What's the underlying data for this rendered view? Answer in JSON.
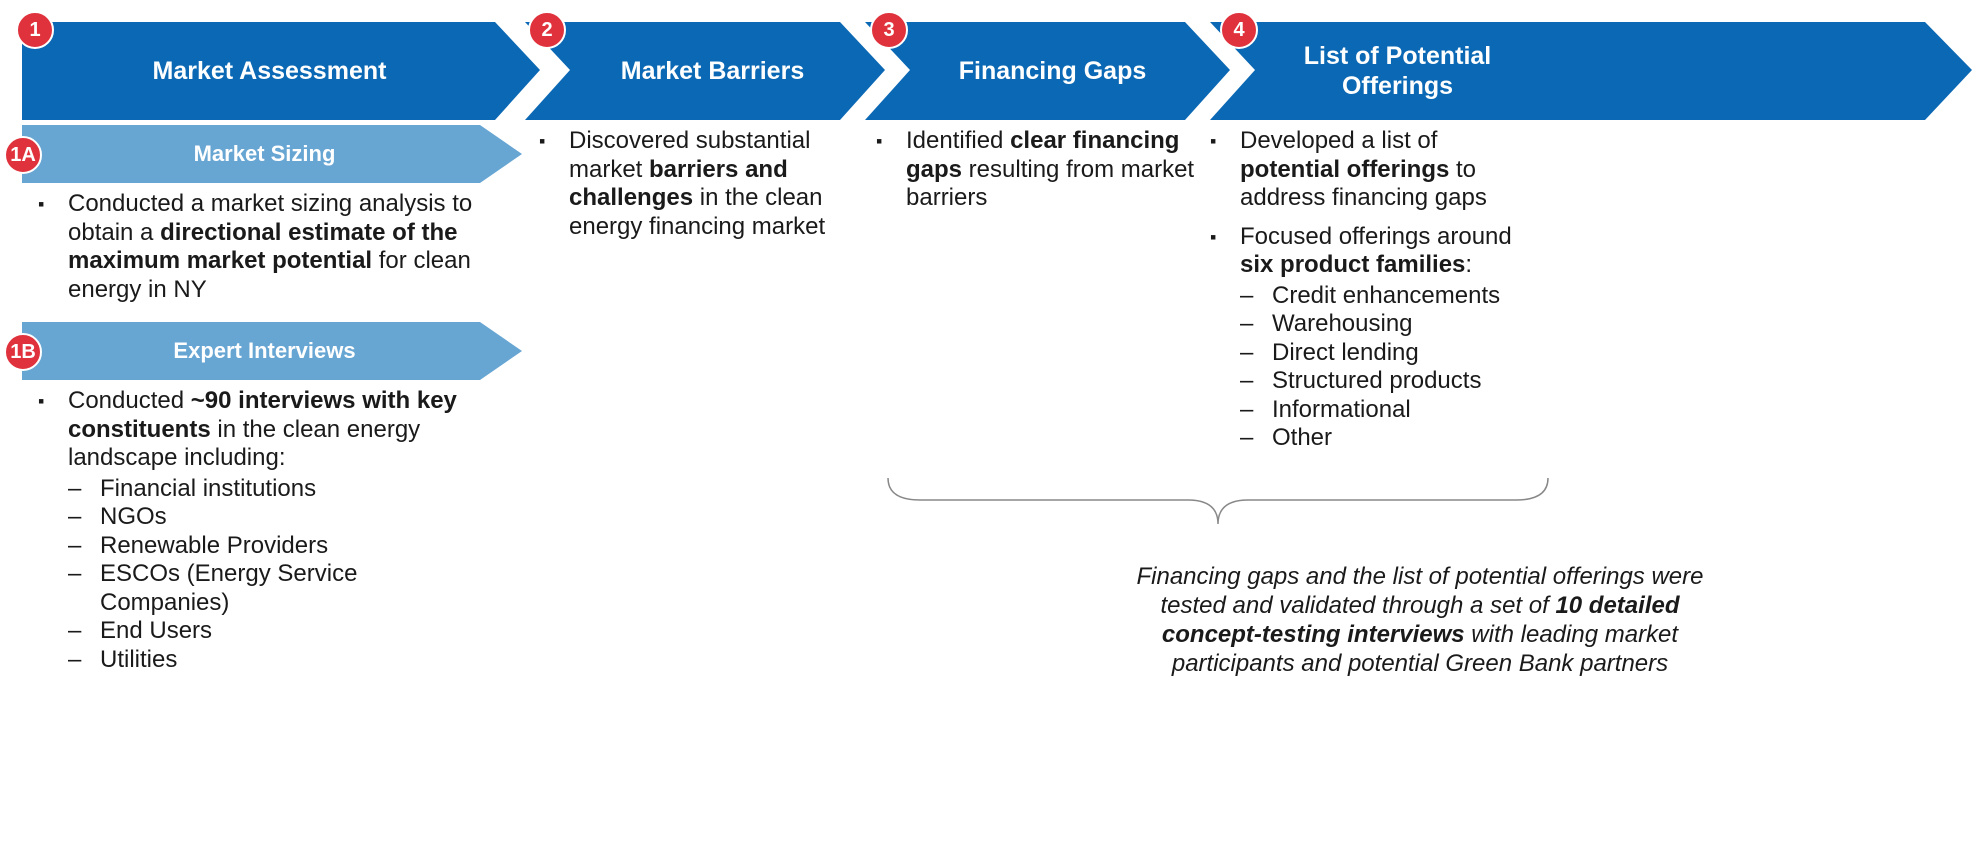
{
  "steps": [
    {
      "number": "1",
      "title": "Market Assessment",
      "substeps": [
        {
          "number": "1A",
          "title": "Market Sizing",
          "bullets": [
            {
              "segments": [
                {
                  "text": "Conducted a market sizing analysis to obtain a "
                },
                {
                  "text": "directional estimate of the maximum market potential",
                  "bold": true
                },
                {
                  "text": " for clean energy in NY"
                }
              ]
            }
          ]
        },
        {
          "number": "1B",
          "title": "Expert Interviews",
          "bullets": [
            {
              "segments": [
                {
                  "text": "Conducted "
                },
                {
                  "text": "~90 interviews with key constituents",
                  "bold": true
                },
                {
                  "text": " in the clean energy landscape including:"
                }
              ],
              "subitems": [
                "Financial institutions",
                "NGOs",
                "Renewable Providers",
                "ESCOs (Energy Service Companies)",
                "End Users",
                "Utilities"
              ]
            }
          ]
        }
      ]
    },
    {
      "number": "2",
      "title": "Market Barriers",
      "bullets": [
        {
          "segments": [
            {
              "text": "Discovered substantial market "
            },
            {
              "text": "barriers and challenges",
              "bold": true
            },
            {
              "text": " in the clean energy financing market"
            }
          ]
        }
      ]
    },
    {
      "number": "3",
      "title": "Financing Gaps",
      "bullets": [
        {
          "segments": [
            {
              "text": "Identified "
            },
            {
              "text": "clear financing gaps",
              "bold": true
            },
            {
              "text": " resulting from market barriers"
            }
          ]
        }
      ]
    },
    {
      "number": "4",
      "title": "List of Potential Offerings",
      "bullets": [
        {
          "segments": [
            {
              "text": "Developed a list of "
            },
            {
              "text": "potential offerings",
              "bold": true
            },
            {
              "text": " to address financing gaps"
            }
          ]
        },
        {
          "segments": [
            {
              "text": "Focused offerings around "
            },
            {
              "text": "six product families",
              "bold": true
            },
            {
              "text": ":"
            }
          ],
          "subitems": [
            "Credit enhancements",
            "Warehousing",
            "Direct lending",
            "Structured products",
            "Informational",
            "Other"
          ]
        }
      ]
    }
  ],
  "footnote": {
    "segments": [
      {
        "text": "Financing gaps and the list of potential offerings were tested and validated through a set of "
      },
      {
        "text": "10 detailed concept-testing interviews",
        "bold": true
      },
      {
        "text": " with leading market participants and potential Green Bank partners"
      }
    ]
  }
}
